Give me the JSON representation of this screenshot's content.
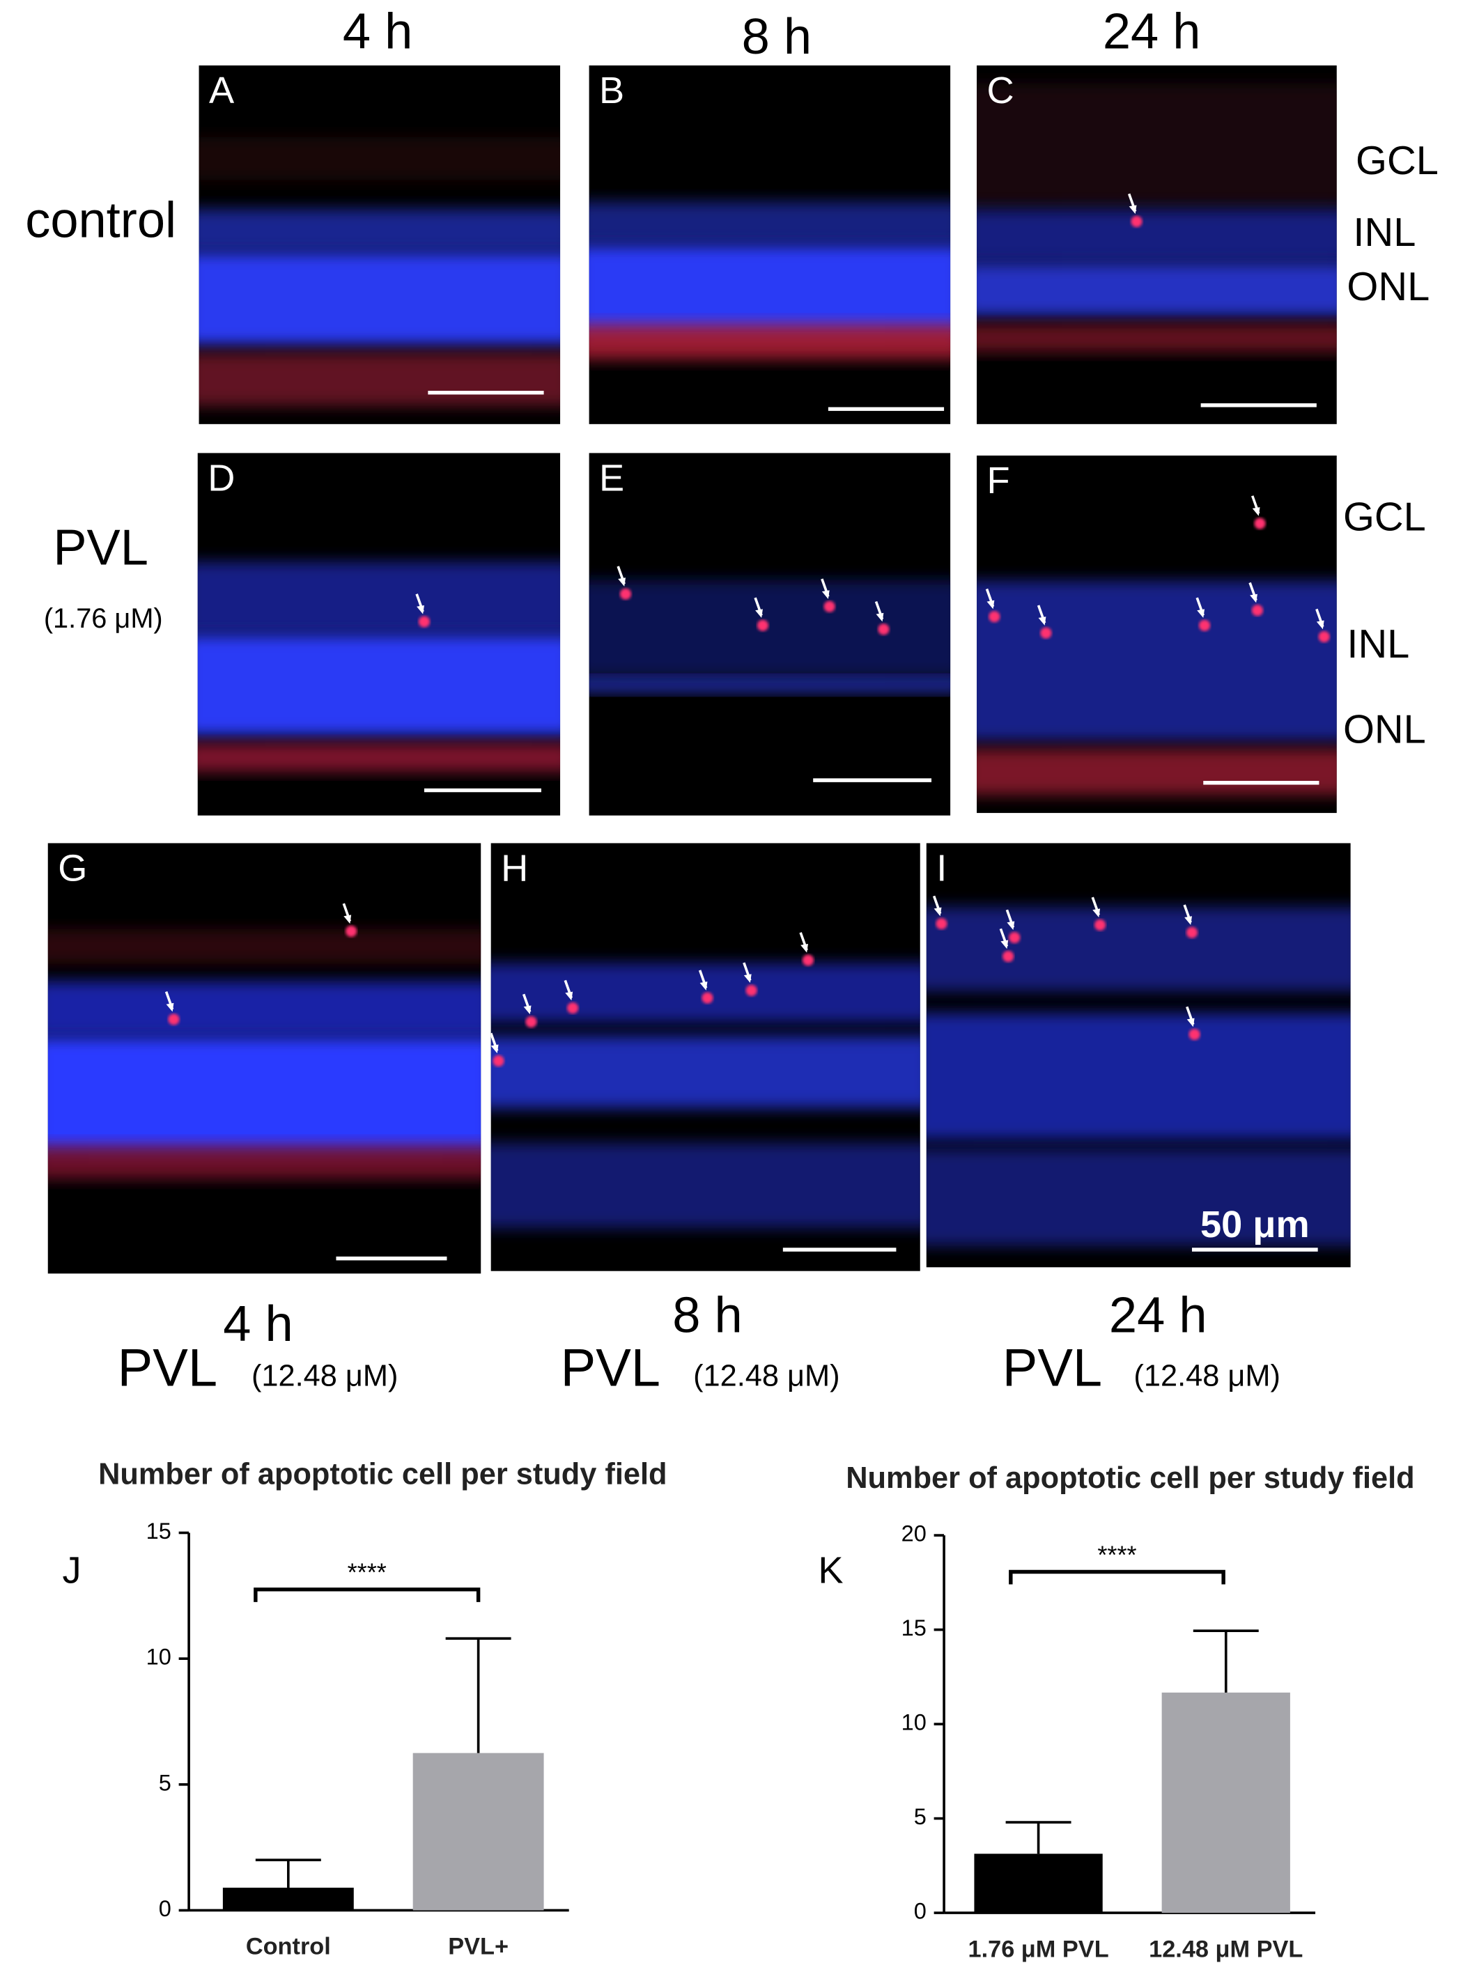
{
  "column_headers": [
    "4 h",
    "8 h",
    "24 h"
  ],
  "row_labels": {
    "control": "control",
    "pvl": "PVL",
    "pvl_dose": "(1.76 μM)"
  },
  "panel_letters": [
    "A",
    "B",
    "C",
    "D",
    "E",
    "F",
    "G",
    "H",
    "I"
  ],
  "layer_labels_row1": [
    "GCL",
    "INL",
    "ONL"
  ],
  "layer_labels_row2": [
    "GCL",
    "INL",
    "ONL"
  ],
  "bottom_labels": [
    {
      "time": "4 h",
      "drug": "PVL",
      "dose": "(12.48 μM)"
    },
    {
      "time": "8 h",
      "drug": "PVL",
      "dose": "(12.48 μM)"
    },
    {
      "time": "24 h",
      "drug": "PVL",
      "dose": "(12.48 μM)"
    }
  ],
  "scale_bar": "50 μm",
  "chart_data": [
    {
      "type": "bar",
      "panel_label": "J",
      "title": "Number of apoptotic cell per study field",
      "categories": [
        "Control",
        "PVL+"
      ],
      "values": [
        0.9,
        6.25
      ],
      "errors": [
        1.1,
        4.55
      ],
      "colors": [
        "#000000",
        "#a6a6ab"
      ],
      "ylim": [
        0,
        15
      ],
      "yticks": [
        0,
        5,
        10,
        15
      ],
      "significance": "****"
    },
    {
      "type": "bar",
      "panel_label": "K",
      "title": "Number of apoptotic cell per study field",
      "categories": [
        "1.76 μM PVL",
        "12.48 μM PVL"
      ],
      "values": [
        3.13,
        11.67
      ],
      "errors": [
        1.67,
        3.27
      ],
      "colors": [
        "#000000",
        "#a6a6ab"
      ],
      "ylim": [
        0,
        20
      ],
      "yticks": [
        0,
        5,
        10,
        15,
        20
      ],
      "significance": "****"
    }
  ]
}
